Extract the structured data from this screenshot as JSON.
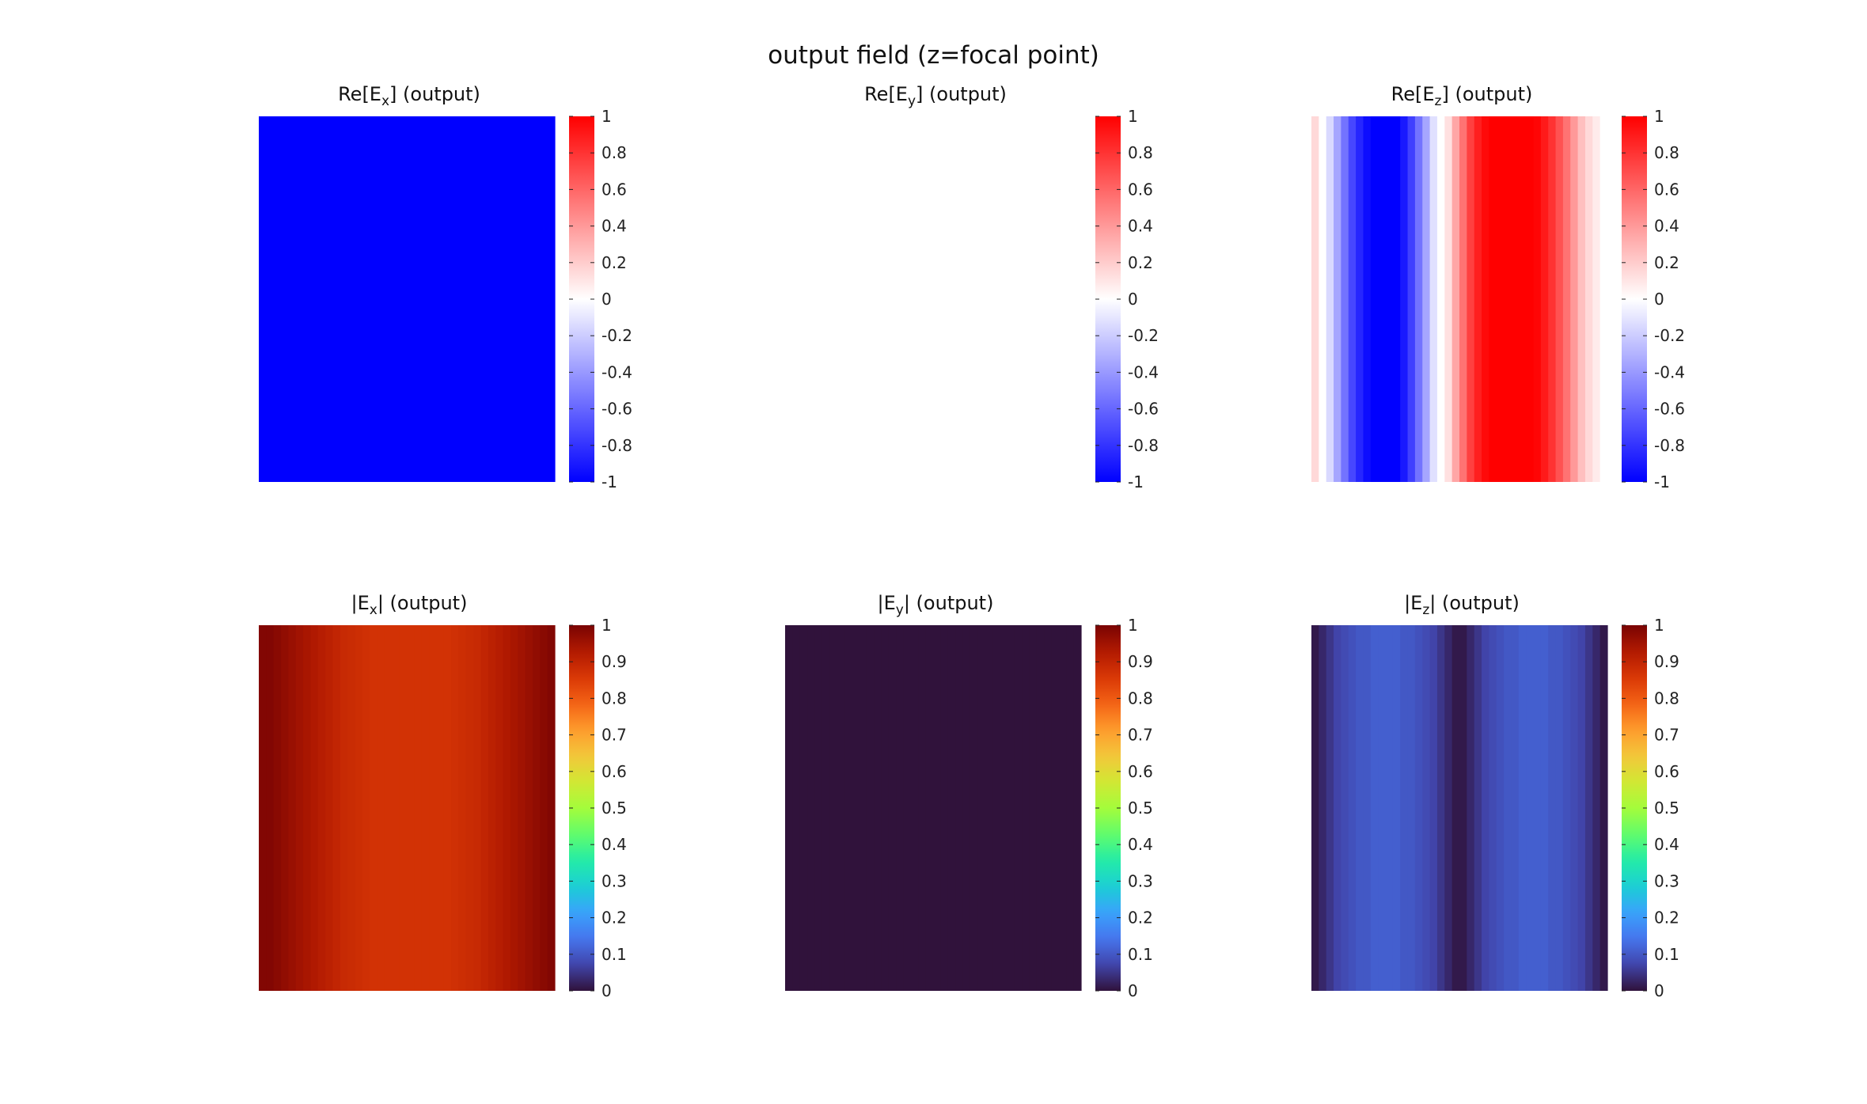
{
  "figure": {
    "title": "output field (z=focal point)"
  },
  "colormaps": {
    "bwr": [
      "#0000ff",
      "#ffffff",
      "#ff0000"
    ],
    "turbo": [
      "#30123b",
      "#4145ab",
      "#4675ed",
      "#39a2fc",
      "#1bcfd4",
      "#24eca6",
      "#61fc6c",
      "#a4fc3b",
      "#d1e834",
      "#f3c63a",
      "#fe9b2d",
      "#f36315",
      "#d93806",
      "#b11901",
      "#7a0403"
    ]
  },
  "chart_data": [
    {
      "type": "heatmap",
      "title_prefix": "Re[E",
      "title_sub": "x",
      "title_suffix": "] (output)",
      "colormap": "bwr",
      "clim": [
        -1,
        1
      ],
      "colorbar_ticks": [
        "1",
        "0.8",
        "0.6",
        "0.4",
        "0.2",
        "0",
        "-0.2",
        "-0.4",
        "-0.6",
        "-0.8",
        "-1"
      ],
      "column_values": [
        -1,
        -1,
        -1,
        -1,
        -1,
        -1,
        -1,
        -1,
        -1,
        -1,
        -1,
        -1,
        -1,
        -1,
        -1,
        -1,
        -1,
        -1,
        -1,
        -1,
        -1,
        -1,
        -1,
        -1,
        -1,
        -1,
        -1,
        -1,
        -1,
        -1,
        -1,
        -1,
        -1,
        -1,
        -1,
        -1,
        -1,
        -1,
        -1,
        -1
      ]
    },
    {
      "type": "heatmap",
      "title_prefix": "Re[E",
      "title_sub": "y",
      "title_suffix": "] (output)",
      "colormap": "bwr",
      "clim": [
        -1,
        1
      ],
      "colorbar_ticks": [
        "1",
        "0.8",
        "0.6",
        "0.4",
        "0.2",
        "0",
        "-0.2",
        "-0.4",
        "-0.6",
        "-0.8",
        "-1"
      ],
      "column_values": [
        0,
        0,
        0,
        0,
        0,
        0,
        0,
        0,
        0,
        0,
        0,
        0,
        0,
        0,
        0,
        0,
        0,
        0,
        0,
        0,
        0,
        0,
        0,
        0,
        0,
        0,
        0,
        0,
        0,
        0,
        0,
        0,
        0,
        0,
        0,
        0,
        0,
        0,
        0,
        0
      ]
    },
    {
      "type": "heatmap",
      "title_prefix": "Re[E",
      "title_sub": "z",
      "title_suffix": "] (output)",
      "colormap": "bwr",
      "clim": [
        -1,
        1
      ],
      "colorbar_ticks": [
        "1",
        "0.8",
        "0.6",
        "0.4",
        "0.2",
        "0",
        "-0.2",
        "-0.4",
        "-0.6",
        "-0.8",
        "-1"
      ],
      "column_values": [
        0.15,
        0.0,
        -0.15,
        -0.35,
        -0.55,
        -0.72,
        -0.85,
        -0.95,
        -1,
        -1,
        -1,
        -1,
        -0.9,
        -0.75,
        -0.55,
        -0.35,
        -0.12,
        0.0,
        0.12,
        0.35,
        0.55,
        0.75,
        0.88,
        0.96,
        1,
        1,
        1,
        1,
        1,
        1,
        0.98,
        0.9,
        0.8,
        0.68,
        0.55,
        0.4,
        0.25,
        0.15,
        0.08,
        0.0
      ]
    },
    {
      "type": "heatmap",
      "title_prefix": "|E",
      "title_sub": "x",
      "title_suffix": "| (output)",
      "colormap": "turbo",
      "clim": [
        0,
        1
      ],
      "colorbar_ticks": [
        "1",
        "0.9",
        "0.8",
        "0.7",
        "0.6",
        "0.5",
        "0.4",
        "0.3",
        "0.2",
        "0.1",
        "0"
      ],
      "column_values": [
        0.99,
        0.99,
        0.98,
        0.97,
        0.96,
        0.95,
        0.94,
        0.93,
        0.92,
        0.91,
        0.9,
        0.89,
        0.885,
        0.88,
        0.875,
        0.87,
        0.87,
        0.87,
        0.87,
        0.87,
        0.87,
        0.87,
        0.87,
        0.87,
        0.87,
        0.87,
        0.875,
        0.88,
        0.885,
        0.89,
        0.9,
        0.91,
        0.92,
        0.93,
        0.94,
        0.95,
        0.96,
        0.97,
        0.98,
        0.99
      ]
    },
    {
      "type": "heatmap",
      "title_prefix": "|E",
      "title_sub": "y",
      "title_suffix": "| (output)",
      "colormap": "turbo",
      "clim": [
        0,
        1
      ],
      "colorbar_ticks": [
        "1",
        "0.9",
        "0.8",
        "0.7",
        "0.6",
        "0.5",
        "0.4",
        "0.3",
        "0.2",
        "0.1",
        "0"
      ],
      "column_values": [
        0,
        0,
        0,
        0,
        0,
        0,
        0,
        0,
        0,
        0,
        0,
        0,
        0,
        0,
        0,
        0,
        0,
        0,
        0,
        0,
        0,
        0,
        0,
        0,
        0,
        0,
        0,
        0,
        0,
        0,
        0,
        0,
        0,
        0,
        0,
        0,
        0,
        0,
        0,
        0
      ]
    },
    {
      "type": "heatmap",
      "title_prefix": "|E",
      "title_sub": "z",
      "title_suffix": "| (output)",
      "colormap": "turbo",
      "clim": [
        0,
        1
      ],
      "colorbar_ticks": [
        "1",
        "0.9",
        "0.8",
        "0.7",
        "0.6",
        "0.5",
        "0.4",
        "0.3",
        "0.2",
        "0.1",
        "0"
      ],
      "column_values": [
        0.01,
        0.03,
        0.05,
        0.07,
        0.08,
        0.09,
        0.1,
        0.1,
        0.11,
        0.11,
        0.11,
        0.11,
        0.1,
        0.1,
        0.09,
        0.08,
        0.07,
        0.05,
        0.03,
        0.01,
        0.01,
        0.03,
        0.05,
        0.07,
        0.08,
        0.09,
        0.1,
        0.1,
        0.11,
        0.11,
        0.11,
        0.11,
        0.1,
        0.1,
        0.09,
        0.08,
        0.07,
        0.05,
        0.03,
        0.01
      ]
    }
  ]
}
